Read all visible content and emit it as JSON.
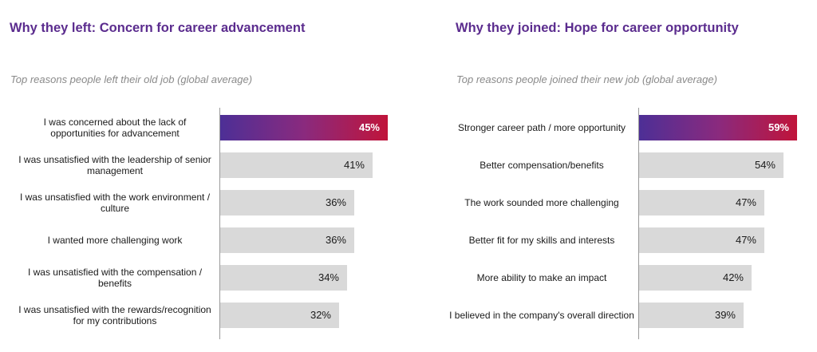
{
  "chart_data": [
    {
      "type": "bar",
      "orientation": "horizontal",
      "title": "Why they left: Concern for career advancement",
      "subtitle": "Top reasons people left their old job (global average)",
      "categories": [
        "I was concerned about the lack of opportunities for advancement",
        "I was unsatisfied with the leadership of senior management",
        "I was unsatisfied with the work environment / culture",
        "I wanted more challenging work",
        "I was unsatisfied with the compensation / benefits",
        "I was unsatisfied with the rewards/recognition for my contributions"
      ],
      "values": [
        45,
        41,
        36,
        36,
        34,
        32
      ],
      "value_labels": [
        "45%",
        "41%",
        "36%",
        "36%",
        "34%",
        "32%"
      ],
      "highlight_index": 0,
      "bar_color": "#d9d9d9",
      "highlight_colors": [
        "#4d2f96",
        "#c0143a"
      ],
      "xlim": [
        0,
        59
      ],
      "grid": false
    },
    {
      "type": "bar",
      "orientation": "horizontal",
      "title": "Why they joined: Hope for career opportunity",
      "subtitle": "Top reasons people joined their new job (global average)",
      "categories": [
        "Stronger career path / more opportunity",
        "Better compensation/benefits",
        "The work sounded more challenging",
        "Better fit for my skills and interests",
        "More ability to make an impact",
        "I believed in the company's overall direction"
      ],
      "values": [
        59,
        54,
        47,
        47,
        42,
        39
      ],
      "value_labels": [
        "59%",
        "54%",
        "47%",
        "47%",
        "42%",
        "39%"
      ],
      "highlight_index": 0,
      "bar_color": "#d9d9d9",
      "highlight_colors": [
        "#4d2f96",
        "#c0143a"
      ],
      "xlim": [
        0,
        59
      ],
      "grid": false
    }
  ],
  "colors": {
    "title": "#5b2c8e",
    "subtitle": "#8a8a8a",
    "text": "#1a1a1a"
  }
}
